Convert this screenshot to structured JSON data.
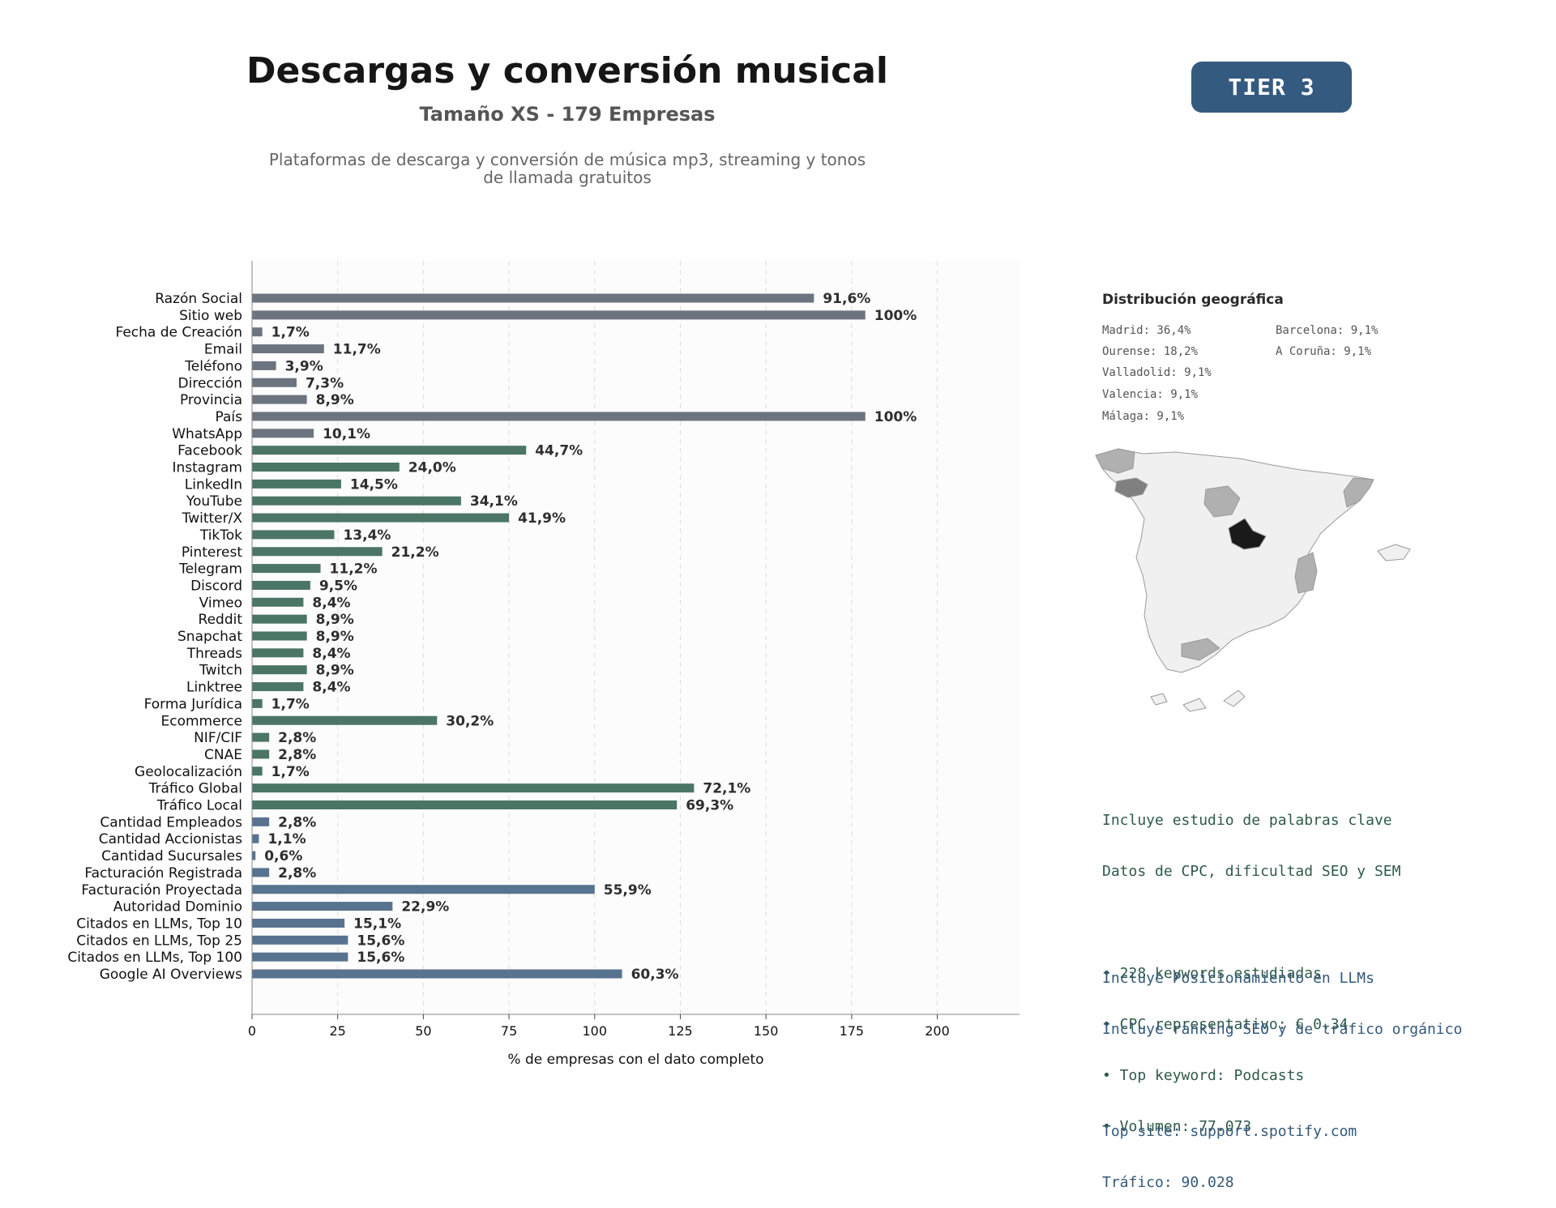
{
  "header": {
    "title": "Descargas y conversión musical",
    "subtitle": "Tamaño XS - 179 Empresas",
    "description_line1": "Plataformas de descarga y conversión de música mp3, streaming y tonos",
    "description_line2": "de llamada gratuitos",
    "tier_badge": "TIER 3"
  },
  "chart_data": {
    "type": "bar",
    "orientation": "horizontal",
    "xlabel": "% de empresas con el dato completo",
    "xlim": [
      0,
      224
    ],
    "xticks": [
      0,
      25,
      50,
      75,
      100,
      125,
      150,
      175,
      200
    ],
    "grid": "vertical dashed",
    "categories": [
      "Razón Social",
      "Sitio web",
      "Fecha de Creación",
      "Email",
      "Teléfono",
      "Dirección",
      "Provincia",
      "País",
      "WhatsApp",
      "Facebook",
      "Instagram",
      "LinkedIn",
      "YouTube",
      "Twitter/X",
      "TikTok",
      "Pinterest",
      "Telegram",
      "Discord",
      "Vimeo",
      "Reddit",
      "Snapchat",
      "Threads",
      "Twitch",
      "Linktree",
      "Forma Jurídica",
      "Ecommerce",
      "NIF/CIF",
      "CNAE",
      "Geolocalización",
      "Tráfico Global",
      "Tráfico Local",
      "Cantidad Empleados",
      "Cantidad Accionistas",
      "Cantidad Sucursales",
      "Facturación Registrada",
      "Facturación Proyectada",
      "Autoridad Dominio",
      "Citados en LLMs, Top 10",
      "Citados en LLMs, Top 25",
      "Citados en LLMs, Top 100",
      "Google AI Overviews"
    ],
    "values": [
      164,
      179,
      3,
      21,
      7,
      13,
      16,
      179,
      18,
      80,
      43,
      26,
      61,
      75,
      24,
      38,
      20,
      17,
      15,
      16,
      16,
      15,
      16,
      15,
      3,
      54,
      5,
      5,
      3,
      129,
      124,
      5,
      2,
      1,
      5,
      100,
      41,
      27,
      28,
      28,
      108
    ],
    "labels": [
      "91,6%",
      "100%",
      "1,7%",
      "11,7%",
      "3,9%",
      "7,3%",
      "8,9%",
      "100%",
      "10,1%",
      "44,7%",
      "24,0%",
      "14,5%",
      "34,1%",
      "41,9%",
      "13,4%",
      "21,2%",
      "11,2%",
      "9,5%",
      "8,4%",
      "8,9%",
      "8,9%",
      "8,4%",
      "8,9%",
      "8,4%",
      "1,7%",
      "30,2%",
      "2,8%",
      "2,8%",
      "1,7%",
      "72,1%",
      "69,3%",
      "2,8%",
      "1,1%",
      "0,6%",
      "2,8%",
      "55,9%",
      "22,9%",
      "15,1%",
      "15,6%",
      "15,6%",
      "60,3%"
    ],
    "colors": [
      "#6c7480",
      "#6c7480",
      "#6c7480",
      "#6c7480",
      "#6c7480",
      "#6c7480",
      "#6c7480",
      "#6c7480",
      "#6c7480",
      "#4b7565",
      "#4b7565",
      "#4b7565",
      "#4b7565",
      "#4b7565",
      "#4b7565",
      "#4b7565",
      "#4b7565",
      "#4b7565",
      "#4b7565",
      "#4b7565",
      "#4b7565",
      "#4b7565",
      "#4b7565",
      "#4b7565",
      "#4b7565",
      "#4b7565",
      "#4b7565",
      "#4b7565",
      "#4b7565",
      "#4b7565",
      "#4b7565",
      "#58738f",
      "#58738f",
      "#58738f",
      "#58738f",
      "#58738f",
      "#58738f",
      "#58738f",
      "#58738f",
      "#58738f",
      "#58738f"
    ]
  },
  "geo": {
    "title": "Distribución geográfica",
    "items": [
      "Madrid: 36,4%",
      "Barcelona: 9,1%",
      "Ourense: 18,2%",
      "A Coruña: 9,1%",
      "Valladolid: 9,1%",
      "Valencia: 9,1%",
      "Málaga: 9,1%"
    ]
  },
  "seo": {
    "line1": "Incluye estudio de palabras clave",
    "line2": "Datos de CPC, dificultad SEO y SEM",
    "bullet1": "• 228 keywords estudiadas",
    "bullet2": "• CPC representativo: € 0.34",
    "bullet3": "• Top keyword: Podcasts",
    "bullet4": "• Volumen: 77.073"
  },
  "llm": {
    "line1": "Incluye Posicionamiento en LLMs",
    "line2": "Incluye ranking SEO y de tráfico orgánico",
    "top_site": "Top site: support.spotify.com",
    "traffic": "Tráfico: 90.028"
  },
  "colors": {
    "badge": "#355a80",
    "bar_grey": "#6c7480",
    "bar_green": "#4b7565",
    "bar_blue": "#58738f",
    "madrid_map": "#1a1a1a"
  }
}
